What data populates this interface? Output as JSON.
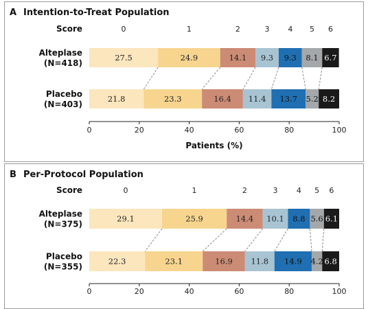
{
  "chart_data": [
    {
      "type": "bar",
      "stacked": true,
      "orientation": "horizontal",
      "panel_letter": "A",
      "title": "Intention-to-Treat Population",
      "score_header": "Score",
      "categories": [
        "0",
        "1",
        "2",
        "3",
        "4",
        "5",
        "6"
      ],
      "groups": [
        {
          "name": "Alteplase",
          "n": "(N=418)",
          "values": [
            27.5,
            24.9,
            14.1,
            9.3,
            9.3,
            8.1,
            6.7
          ]
        },
        {
          "name": "Placebo",
          "n": "(N=403)",
          "values": [
            21.8,
            23.3,
            16.4,
            11.4,
            13.7,
            5.2,
            8.2
          ]
        }
      ],
      "xlabel": "Patients (%)",
      "xlim": [
        0,
        100
      ],
      "xticks": [
        0,
        20,
        40,
        60,
        80,
        100
      ],
      "grid": false
    },
    {
      "type": "bar",
      "stacked": true,
      "orientation": "horizontal",
      "panel_letter": "B",
      "title": "Per-Protocol Population",
      "score_header": "Score",
      "categories": [
        "0",
        "1",
        "2",
        "3",
        "4",
        "5",
        "6"
      ],
      "groups": [
        {
          "name": "Alteplase",
          "n": "(N=375)",
          "values": [
            29.1,
            25.9,
            14.4,
            10.1,
            8.8,
            5.6,
            6.1
          ]
        },
        {
          "name": "Placebo",
          "n": "(N=355)",
          "values": [
            22.3,
            23.1,
            16.9,
            11.8,
            14.9,
            4.2,
            6.8
          ]
        }
      ],
      "xlabel": "",
      "xlim": [
        0,
        100
      ],
      "xticks": [
        0,
        20,
        40,
        60,
        80,
        100
      ],
      "grid": false
    }
  ],
  "colors": {
    "segments": [
      "#fbe6bd",
      "#f7d58f",
      "#cc8b74",
      "#a8c4d3",
      "#1f6fb2",
      "#a5a8ab",
      "#1a1a1a"
    ],
    "segment_text": [
      "#222222",
      "#222222",
      "#222222",
      "#222222",
      "#111111",
      "#111111",
      "#ffffff"
    ],
    "connector": "#8a8a8a",
    "frame": "#9a9a9a"
  }
}
